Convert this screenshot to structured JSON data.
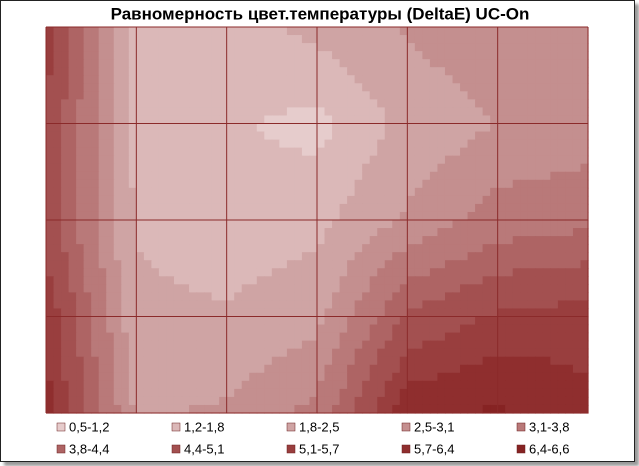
{
  "chart_data": {
    "type": "contour",
    "title": "Равномерность цвет.температуры (DeltaE) UC-On",
    "z": [
      [
        5.5,
        1.6,
        1.5,
        2.0,
        2.6,
        3.0,
        3.1
      ],
      [
        5.0,
        1.6,
        1.3,
        1.0,
        2.0,
        2.5,
        2.7
      ],
      [
        4.8,
        1.7,
        1.3,
        1.6,
        2.6,
        3.4,
        3.6
      ],
      [
        5.6,
        2.0,
        1.9,
        2.3,
        4.5,
        5.2,
        5.4
      ],
      [
        6.0,
        2.4,
        2.6,
        3.3,
        6.2,
        6.5,
        5.9
      ]
    ],
    "bands": [
      {
        "label": "0,5-1,2",
        "min": 0.5,
        "max": 1.2,
        "color": "#e6cccc"
      },
      {
        "label": "1,2-1,8",
        "min": 1.2,
        "max": 1.8,
        "color": "#dbb8b8"
      },
      {
        "label": "1,8-2,5",
        "min": 1.8,
        "max": 2.5,
        "color": "#cfa4a4"
      },
      {
        "label": "2,5-3,1",
        "min": 2.5,
        "max": 3.1,
        "color": "#c48f8f"
      },
      {
        "label": "3,1-3,8",
        "min": 3.1,
        "max": 3.8,
        "color": "#b97979"
      },
      {
        "label": "3,8-4,4",
        "min": 3.8,
        "max": 4.4,
        "color": "#ae6464"
      },
      {
        "label": "4,4-5,1",
        "min": 4.4,
        "max": 5.1,
        "color": "#a35050"
      },
      {
        "label": "5,1-5,7",
        "min": 5.1,
        "max": 5.7,
        "color": "#993e3e"
      },
      {
        "label": "5,7-6,4",
        "min": 5.7,
        "max": 6.4,
        "color": "#8f2e2e"
      },
      {
        "label": "6,4-6,6",
        "min": 6.4,
        "max": 6.6,
        "color": "#862323"
      }
    ],
    "grid": true
  }
}
